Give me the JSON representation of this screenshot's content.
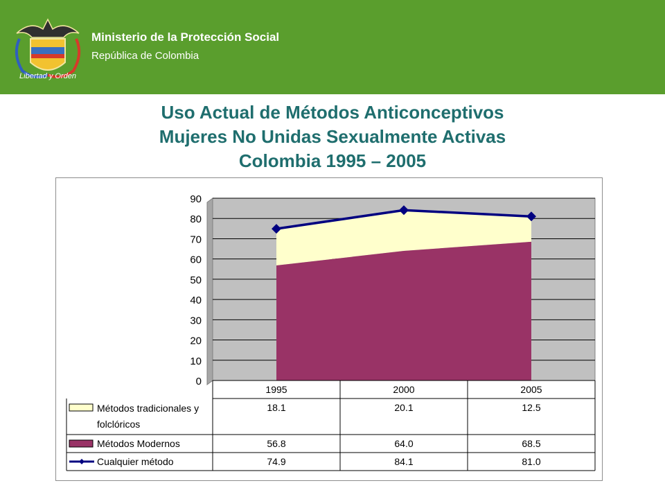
{
  "header": {
    "organization": "Ministerio de la Protección Social",
    "country": "República de Colombia",
    "seal_motto": "Libertad y Orden",
    "seal_icon": "colombia-coat-of-arms-icon",
    "banner_color": "#5a9e2d"
  },
  "title_lines": [
    "Uso Actual de Métodos Anticonceptivos",
    "Mujeres No Unidas Sexualmente Activas",
    "Colombia 1995 – 2005"
  ],
  "chart_data": {
    "type": "area",
    "categories": [
      "1995",
      "2000",
      "2005"
    ],
    "ylim": [
      0,
      90
    ],
    "yticks": [
      0,
      10,
      20,
      30,
      40,
      50,
      60,
      70,
      80,
      90
    ],
    "grid": true,
    "stacked": true,
    "series": [
      {
        "name": "Métodos tradicionales y folclóricos",
        "type": "area",
        "values": [
          18.1,
          20.1,
          12.5
        ],
        "labels": [
          "18.1",
          "20.1",
          "12.5"
        ],
        "color": "#ffffcc"
      },
      {
        "name": "Métodos Modernos",
        "type": "area",
        "values": [
          56.8,
          64.0,
          68.5
        ],
        "labels": [
          "56.8",
          "64.0",
          "68.5"
        ],
        "color": "#993366"
      },
      {
        "name": "Cualquier método",
        "type": "line",
        "values": [
          74.9,
          84.1,
          81.0
        ],
        "labels": [
          "74.9",
          "84.1",
          "81.0"
        ],
        "color": "#000080"
      }
    ],
    "plot_background": "#c0c0c0",
    "legend_placement": "data-table"
  }
}
